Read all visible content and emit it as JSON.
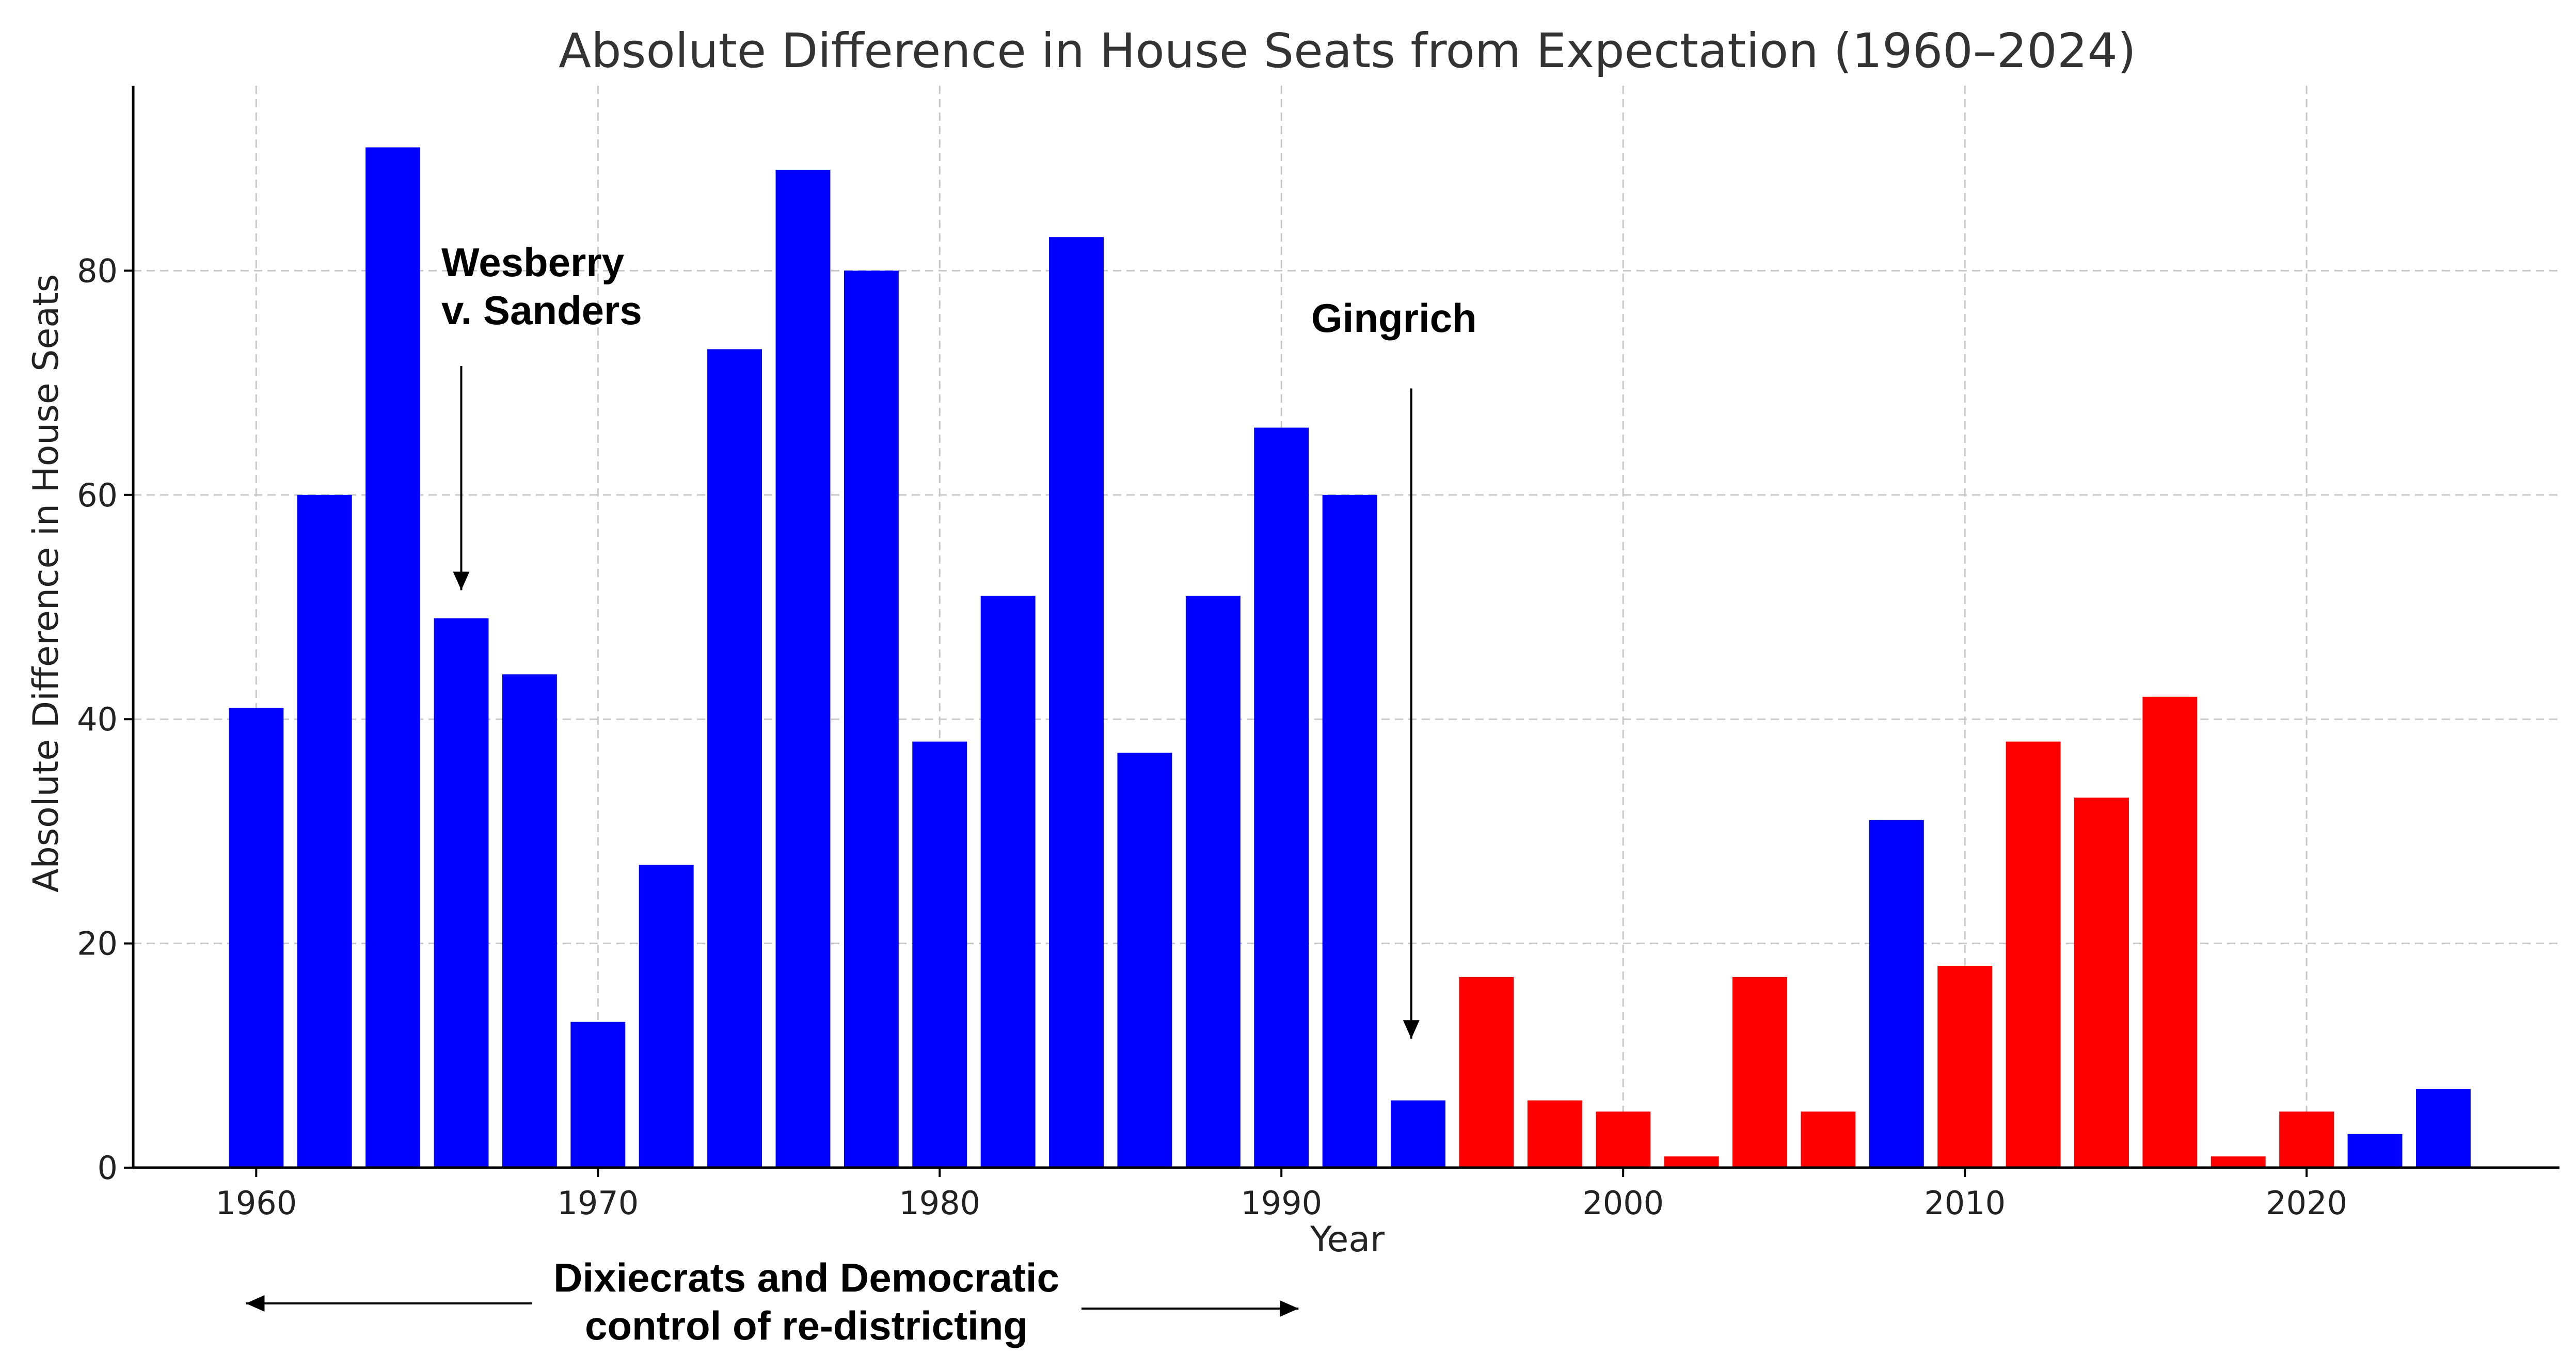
{
  "chart_data": {
    "type": "bar",
    "title": "Absolute Difference in House Seats from Expectation (1960–2024)",
    "xlabel": "Year",
    "ylabel": "Absolute Difference in House Seats",
    "xlim": [
      1956.4,
      2027.4
    ],
    "ylim": [
      0,
      96.5
    ],
    "xticks": [
      1960,
      1970,
      1980,
      1990,
      2000,
      2010,
      2020
    ],
    "yticks": [
      0,
      20,
      40,
      60,
      80
    ],
    "grid": true,
    "colors": {
      "blue": "#0000ff",
      "red": "#ff0000"
    },
    "bars": [
      {
        "year": 1960,
        "value": 41,
        "color": "blue"
      },
      {
        "year": 1962,
        "value": 60,
        "color": "blue"
      },
      {
        "year": 1964,
        "value": 91,
        "color": "blue"
      },
      {
        "year": 1966,
        "value": 49,
        "color": "blue"
      },
      {
        "year": 1968,
        "value": 44,
        "color": "blue"
      },
      {
        "year": 1970,
        "value": 13,
        "color": "blue"
      },
      {
        "year": 1972,
        "value": 27,
        "color": "blue"
      },
      {
        "year": 1974,
        "value": 73,
        "color": "blue"
      },
      {
        "year": 1976,
        "value": 89,
        "color": "blue"
      },
      {
        "year": 1978,
        "value": 80,
        "color": "blue"
      },
      {
        "year": 1980,
        "value": 38,
        "color": "blue"
      },
      {
        "year": 1982,
        "value": 51,
        "color": "blue"
      },
      {
        "year": 1984,
        "value": 83,
        "color": "blue"
      },
      {
        "year": 1986,
        "value": 37,
        "color": "blue"
      },
      {
        "year": 1988,
        "value": 51,
        "color": "blue"
      },
      {
        "year": 1990,
        "value": 66,
        "color": "blue"
      },
      {
        "year": 1992,
        "value": 60,
        "color": "blue"
      },
      {
        "year": 1994,
        "value": 6,
        "color": "blue"
      },
      {
        "year": 1996,
        "value": 17,
        "color": "red"
      },
      {
        "year": 1998,
        "value": 6,
        "color": "red"
      },
      {
        "year": 2000,
        "value": 5,
        "color": "red"
      },
      {
        "year": 2002,
        "value": 1,
        "color": "red"
      },
      {
        "year": 2004,
        "value": 17,
        "color": "red"
      },
      {
        "year": 2006,
        "value": 5,
        "color": "red"
      },
      {
        "year": 2008,
        "value": 31,
        "color": "blue"
      },
      {
        "year": 2010,
        "value": 18,
        "color": "red"
      },
      {
        "year": 2012,
        "value": 38,
        "color": "red"
      },
      {
        "year": 2014,
        "value": 33,
        "color": "red"
      },
      {
        "year": 2016,
        "value": 42,
        "color": "red"
      },
      {
        "year": 2018,
        "value": 1,
        "color": "red"
      },
      {
        "year": 2020,
        "value": 5,
        "color": "red"
      },
      {
        "year": 2022,
        "value": 3,
        "color": "blue"
      },
      {
        "year": 2024,
        "value": 7,
        "color": "blue"
      }
    ],
    "annotations": {
      "wesberry": {
        "lines": [
          "Wesberry",
          "v. Sanders"
        ],
        "arrow_year": 1966,
        "arrow_from_value": 71.5,
        "arrow_to_value": 51.5
      },
      "gingrich": {
        "lines": [
          "Gingrich"
        ],
        "arrow_year": 1993.8,
        "arrow_from_value": 69.5,
        "arrow_to_value": 11.5
      },
      "dixiecrats": {
        "lines": [
          "Dixiecrats and Democratic",
          "control of re-districting"
        ],
        "span_from_year": 1959.7,
        "span_to_year": 1990.5
      }
    }
  }
}
